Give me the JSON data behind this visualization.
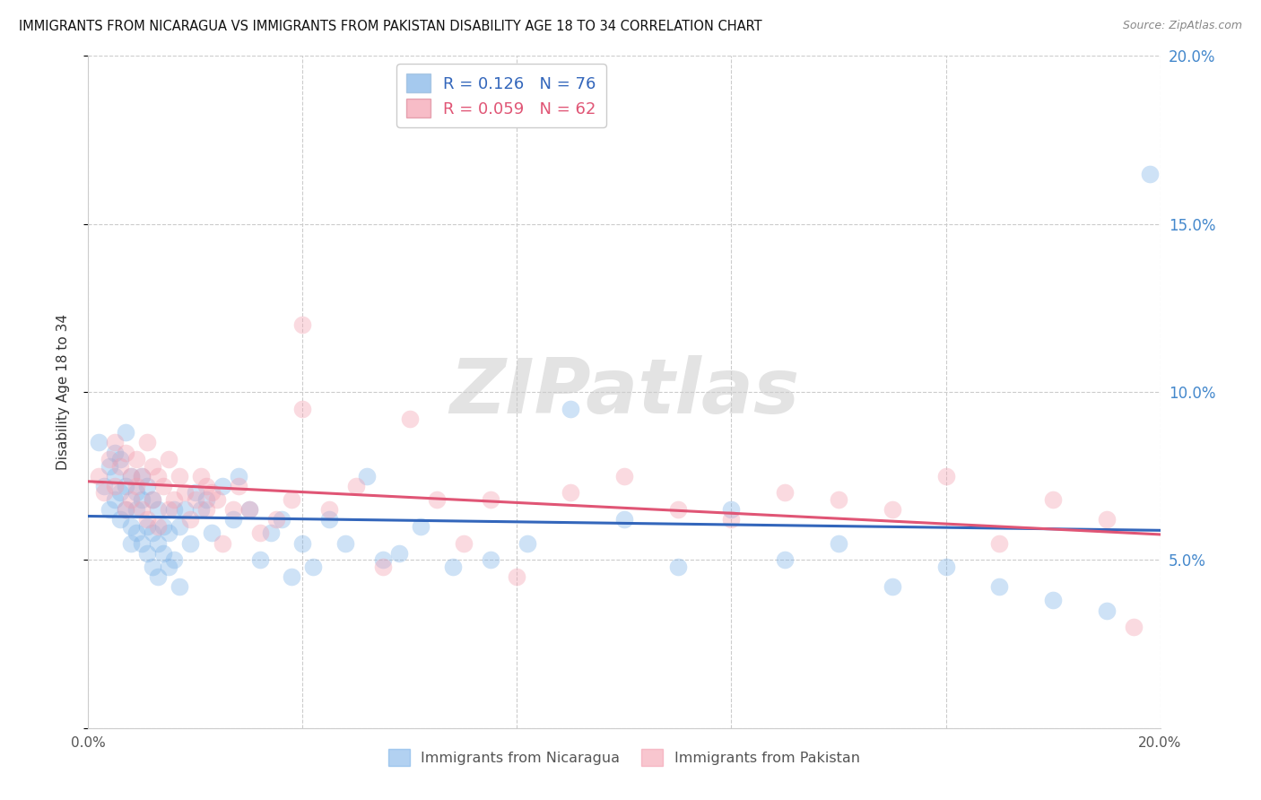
{
  "title": "IMMIGRANTS FROM NICARAGUA VS IMMIGRANTS FROM PAKISTAN DISABILITY AGE 18 TO 34 CORRELATION CHART",
  "source": "Source: ZipAtlas.com",
  "ylabel": "Disability Age 18 to 34",
  "xlim": [
    0.0,
    0.2
  ],
  "ylim": [
    0.0,
    0.2
  ],
  "blue_R": 0.126,
  "blue_N": 76,
  "pink_R": 0.059,
  "pink_N": 62,
  "blue_color": "#7FB3E8",
  "pink_color": "#F4A0B0",
  "blue_line_color": "#3366BB",
  "pink_line_color": "#E05575",
  "watermark": "ZIPatlas",
  "legend_label_blue": "Immigrants from Nicaragua",
  "legend_label_pink": "Immigrants from Pakistan",
  "blue_scatter_x": [
    0.002,
    0.003,
    0.004,
    0.004,
    0.005,
    0.005,
    0.005,
    0.006,
    0.006,
    0.006,
    0.007,
    0.007,
    0.007,
    0.008,
    0.008,
    0.008,
    0.009,
    0.009,
    0.009,
    0.01,
    0.01,
    0.01,
    0.011,
    0.011,
    0.011,
    0.012,
    0.012,
    0.012,
    0.013,
    0.013,
    0.013,
    0.014,
    0.014,
    0.015,
    0.015,
    0.016,
    0.016,
    0.017,
    0.017,
    0.018,
    0.019,
    0.02,
    0.021,
    0.022,
    0.023,
    0.025,
    0.027,
    0.028,
    0.03,
    0.032,
    0.034,
    0.036,
    0.038,
    0.04,
    0.042,
    0.045,
    0.048,
    0.052,
    0.055,
    0.058,
    0.062,
    0.068,
    0.075,
    0.082,
    0.09,
    0.1,
    0.11,
    0.12,
    0.13,
    0.14,
    0.15,
    0.16,
    0.17,
    0.18,
    0.19,
    0.198
  ],
  "blue_scatter_y": [
    0.085,
    0.072,
    0.078,
    0.065,
    0.082,
    0.068,
    0.075,
    0.08,
    0.07,
    0.062,
    0.088,
    0.065,
    0.072,
    0.075,
    0.06,
    0.055,
    0.07,
    0.065,
    0.058,
    0.075,
    0.068,
    0.055,
    0.072,
    0.06,
    0.052,
    0.068,
    0.058,
    0.048,
    0.065,
    0.055,
    0.045,
    0.06,
    0.052,
    0.058,
    0.048,
    0.065,
    0.05,
    0.06,
    0.042,
    0.065,
    0.055,
    0.07,
    0.065,
    0.068,
    0.058,
    0.072,
    0.062,
    0.075,
    0.065,
    0.05,
    0.058,
    0.062,
    0.045,
    0.055,
    0.048,
    0.062,
    0.055,
    0.075,
    0.05,
    0.052,
    0.06,
    0.048,
    0.05,
    0.055,
    0.095,
    0.062,
    0.048,
    0.065,
    0.05,
    0.055,
    0.042,
    0.048,
    0.042,
    0.038,
    0.035,
    0.165
  ],
  "pink_scatter_x": [
    0.002,
    0.003,
    0.004,
    0.005,
    0.005,
    0.006,
    0.007,
    0.007,
    0.008,
    0.008,
    0.009,
    0.009,
    0.01,
    0.01,
    0.011,
    0.011,
    0.012,
    0.012,
    0.013,
    0.013,
    0.014,
    0.015,
    0.015,
    0.016,
    0.017,
    0.018,
    0.019,
    0.02,
    0.021,
    0.022,
    0.023,
    0.024,
    0.025,
    0.027,
    0.028,
    0.03,
    0.032,
    0.035,
    0.038,
    0.04,
    0.045,
    0.05,
    0.055,
    0.06,
    0.065,
    0.07,
    0.075,
    0.08,
    0.09,
    0.1,
    0.11,
    0.12,
    0.13,
    0.14,
    0.15,
    0.16,
    0.17,
    0.18,
    0.19,
    0.195,
    0.04,
    0.022
  ],
  "pink_scatter_y": [
    0.075,
    0.07,
    0.08,
    0.085,
    0.072,
    0.078,
    0.082,
    0.065,
    0.075,
    0.068,
    0.08,
    0.072,
    0.065,
    0.075,
    0.085,
    0.062,
    0.078,
    0.068,
    0.075,
    0.06,
    0.072,
    0.065,
    0.08,
    0.068,
    0.075,
    0.07,
    0.062,
    0.068,
    0.075,
    0.065,
    0.07,
    0.068,
    0.055,
    0.065,
    0.072,
    0.065,
    0.058,
    0.062,
    0.068,
    0.12,
    0.065,
    0.072,
    0.048,
    0.092,
    0.068,
    0.055,
    0.068,
    0.045,
    0.07,
    0.075,
    0.065,
    0.062,
    0.07,
    0.068,
    0.065,
    0.075,
    0.055,
    0.068,
    0.062,
    0.03,
    0.095,
    0.072
  ]
}
